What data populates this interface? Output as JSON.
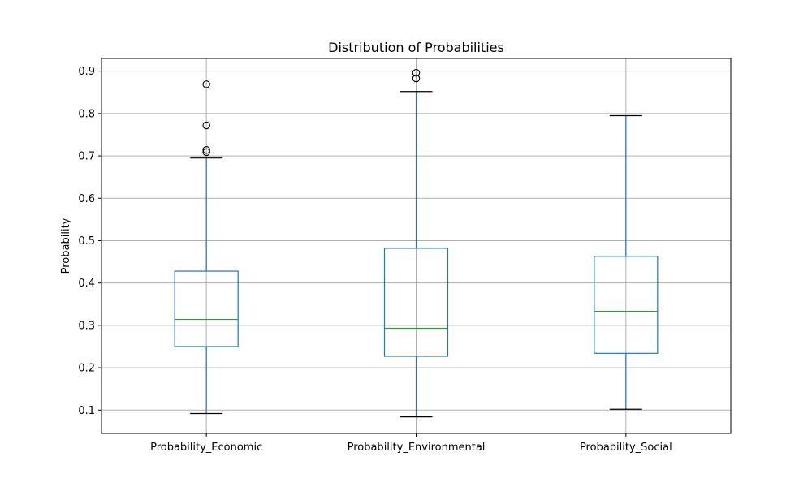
{
  "chart_data": {
    "type": "box",
    "title": "Distribution of Probabilities",
    "xlabel": "",
    "ylabel": "Probability",
    "ylim": [
      0.045,
      0.93
    ],
    "yticks": [
      0.1,
      0.2,
      0.3,
      0.4,
      0.5,
      0.6,
      0.7,
      0.8,
      0.9
    ],
    "grid": true,
    "categories": [
      "Probability_Economic",
      "Probability_Environmental",
      "Probability_Social"
    ],
    "boxes": [
      {
        "whisker_low": 0.092,
        "q1": 0.25,
        "median": 0.314,
        "q3": 0.428,
        "whisker_high": 0.695,
        "outliers": [
          0.709,
          0.714,
          0.772,
          0.869
        ]
      },
      {
        "whisker_low": 0.084,
        "q1": 0.227,
        "median": 0.293,
        "q3": 0.482,
        "whisker_high": 0.852,
        "outliers": [
          0.883,
          0.896
        ]
      },
      {
        "whisker_low": 0.102,
        "q1": 0.234,
        "median": 0.333,
        "q3": 0.463,
        "whisker_high": 0.795,
        "outliers": []
      }
    ],
    "colors": {
      "box": "#1f77b4",
      "median": "#2ca02c",
      "whisker": "#1f77b4",
      "cap": "#000000",
      "grid": "#b0b0b0",
      "outlier": "#000000"
    }
  }
}
